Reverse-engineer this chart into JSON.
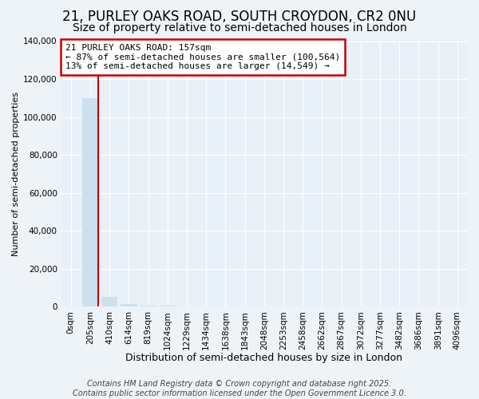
{
  "title": "21, PURLEY OAKS ROAD, SOUTH CROYDON, CR2 0NU",
  "subtitle": "Size of property relative to semi-detached houses in London",
  "xlabel": "Distribution of semi-detached houses by size in London",
  "ylabel": "Number of semi-detached properties",
  "annotation_title": "21 PURLEY OAKS ROAD: 157sqm",
  "annotation_line1": "← 87% of semi-detached houses are smaller (100,564)",
  "annotation_line2": "13% of semi-detached houses are larger (14,549) →",
  "categories": [
    "0sqm",
    "205sqm",
    "410sqm",
    "614sqm",
    "819sqm",
    "1024sqm",
    "1229sqm",
    "1434sqm",
    "1638sqm",
    "1843sqm",
    "2048sqm",
    "2253sqm",
    "2458sqm",
    "2662sqm",
    "2867sqm",
    "3072sqm",
    "3277sqm",
    "3482sqm",
    "3686sqm",
    "3891sqm",
    "4096sqm"
  ],
  "values": [
    0,
    110000,
    5000,
    1500,
    700,
    400,
    220,
    130,
    80,
    55,
    35,
    22,
    16,
    11,
    8,
    6,
    5,
    4,
    3,
    2,
    1
  ],
  "bar_color": "#cce0f0",
  "vline_color": "#cc0000",
  "vline_x_index": 1,
  "background_color": "#eef3f8",
  "plot_bg_color": "#e8f0f8",
  "annotation_box_facecolor": "white",
  "annotation_box_edgecolor": "#cc0000",
  "footer": "Contains HM Land Registry data © Crown copyright and database right 2025.\nContains public sector information licensed under the Open Government Licence 3.0.",
  "ylim": [
    0,
    140000
  ],
  "yticks": [
    0,
    20000,
    40000,
    60000,
    80000,
    100000,
    120000,
    140000
  ],
  "title_fontsize": 12,
  "subtitle_fontsize": 10,
  "ylabel_fontsize": 8,
  "xlabel_fontsize": 9,
  "footer_fontsize": 7,
  "tick_fontsize": 7.5,
  "ann_fontsize": 8
}
